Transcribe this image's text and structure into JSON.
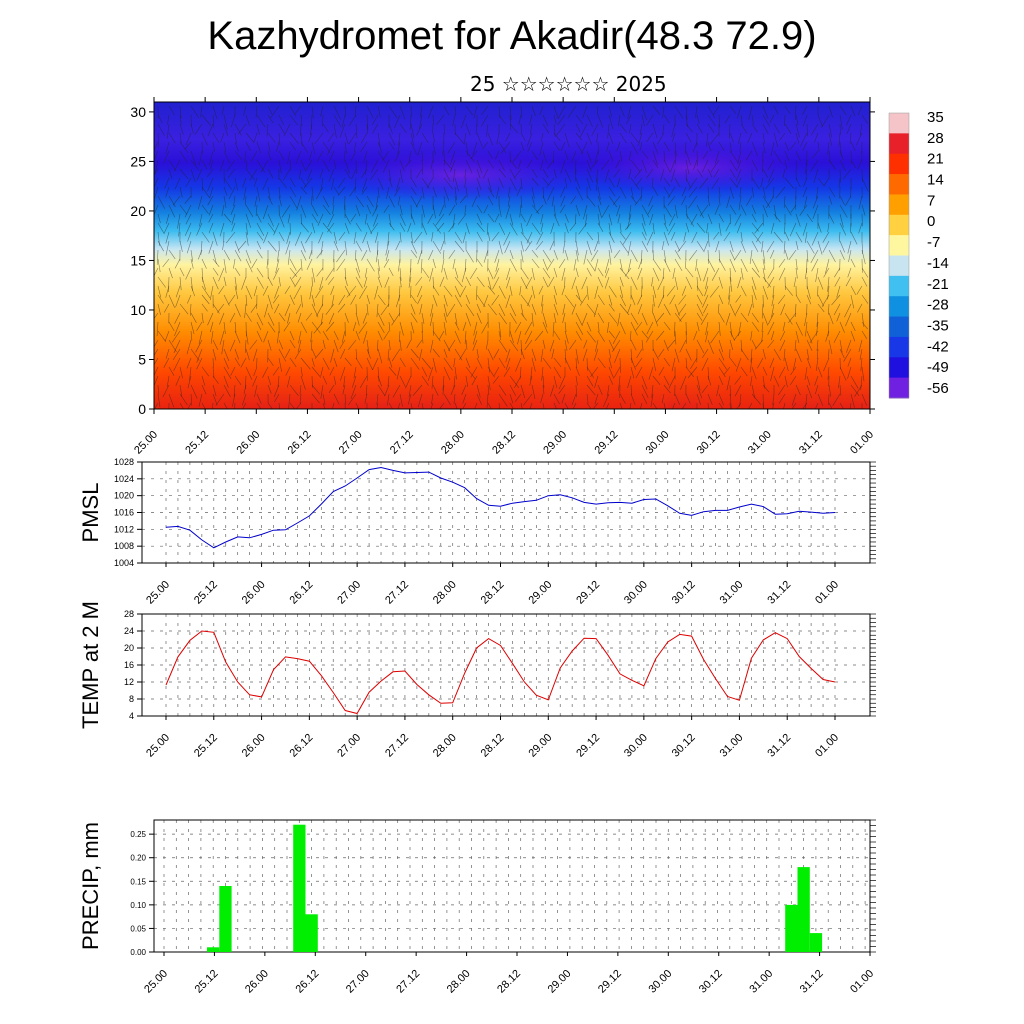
{
  "title": "Kazhydromet for Akadir(48.3 72.9)",
  "subtitle": "25 ☆☆☆☆☆☆ 2025",
  "colors": {
    "pmsl_line": "#0000cc",
    "temp_line": "#dd0000",
    "precip_bar": "#00ee00",
    "frame": "#000000"
  },
  "chart_data": [
    {
      "type": "heatmap",
      "name": "cross-section",
      "y_ticks": [
        0,
        5,
        10,
        15,
        20,
        25,
        30
      ],
      "ylim": [
        0,
        31
      ],
      "x_tick_labels": [
        "25.00",
        "25.12",
        "26.00",
        "26.12",
        "27.00",
        "27.12",
        "28.00",
        "28.12",
        "29.00",
        "29.12",
        "30.00",
        "30.12",
        "31.00",
        "31.12",
        "01.00"
      ],
      "colorbar_labels": [
        "35",
        "28",
        "21",
        "14",
        "7",
        "0",
        "-7",
        "-14",
        "-21",
        "-28",
        "-35",
        "-42",
        "-49",
        "-56"
      ],
      "colorbar_colors": [
        "#f4c4c8",
        "#e8202a",
        "#ff3000",
        "#ff6a00",
        "#ffa000",
        "#ffd040",
        "#fff7a0",
        "#c8e4f0",
        "#40c0f0",
        "#1090e0",
        "#1060d8",
        "#1838e8",
        "#2010e0",
        "#7020e0"
      ],
      "temperature_profile_note": "",
      "grid": true
    },
    {
      "type": "line",
      "name": "pmsl",
      "ylabel": "PMSL",
      "y_ticks": [
        1004,
        1008,
        1012,
        1016,
        1020,
        1024,
        1028
      ],
      "ylim": [
        1004,
        1028
      ],
      "x_tick_labels": [
        "25.00",
        "25.12",
        "26.00",
        "26.12",
        "27.00",
        "27.12",
        "28.00",
        "28.12",
        "29.00",
        "29.12",
        "30.00",
        "30.12",
        "31.00",
        "31.12",
        "01.00"
      ],
      "values": [
        1012.5,
        1012.7,
        1011.8,
        1009.5,
        1007.6,
        1009.0,
        1010.2,
        1010.0,
        1010.8,
        1011.8,
        1011.9,
        1013.5,
        1015.2,
        1018.0,
        1021.0,
        1022.3,
        1024.2,
        1026.2,
        1026.7,
        1026.0,
        1025.4,
        1025.5,
        1025.6,
        1024.2,
        1023.2,
        1021.9,
        1019.3,
        1017.7,
        1017.5,
        1018.2,
        1018.6,
        1018.9,
        1020.0,
        1020.2,
        1019.5,
        1018.4,
        1018.0,
        1018.3,
        1018.4,
        1018.2,
        1019.1,
        1019.2,
        1017.6,
        1015.8,
        1015.3,
        1016.2,
        1016.5,
        1016.5,
        1017.3,
        1018.0,
        1017.4,
        1015.6,
        1015.7,
        1016.3,
        1016.1,
        1015.8,
        1016.0
      ],
      "grid": true
    },
    {
      "type": "line",
      "name": "temp",
      "ylabel": "TEMP at 2 M",
      "y_ticks": [
        4,
        8,
        12,
        16,
        20,
        24,
        28
      ],
      "ylim": [
        4,
        28
      ],
      "x_tick_labels": [
        "25.00",
        "25.12",
        "26.00",
        "26.12",
        "27.00",
        "27.12",
        "28.00",
        "28.12",
        "29.00",
        "29.12",
        "30.00",
        "30.12",
        "31.00",
        "31.12",
        "01.00"
      ],
      "values": [
        11.3,
        17.9,
        21.8,
        24.0,
        23.7,
        16.7,
        12.0,
        9.0,
        8.5,
        14.9,
        17.9,
        17.5,
        16.9,
        13.5,
        9.5,
        5.3,
        4.6,
        9.6,
        12.2,
        14.4,
        14.6,
        11.4,
        9.0,
        7.0,
        7.1,
        14.1,
        20.0,
        22.2,
        20.6,
        16.4,
        12.0,
        8.9,
        7.8,
        15.3,
        19.3,
        22.3,
        22.2,
        18.3,
        13.9,
        12.4,
        11.1,
        17.5,
        21.4,
        23.2,
        22.8,
        17.3,
        12.8,
        8.6,
        7.7,
        17.6,
        21.9,
        23.6,
        22.2,
        18.0,
        15.2,
        12.6,
        12.0
      ],
      "grid": true
    },
    {
      "type": "bar",
      "name": "precip",
      "ylabel": "PRECIP, mm",
      "y_ticks": [
        0.0,
        0.05,
        0.1,
        0.15,
        0.2,
        0.25
      ],
      "y_tick_labels": [
        "0.00",
        "0.05",
        "0.10",
        "0.15",
        "0.20",
        "0.25"
      ],
      "ylim": [
        0,
        0.28
      ],
      "x_tick_labels": [
        "25.00",
        "25.12",
        "26.00",
        "26.12",
        "27.00",
        "27.12",
        "28.00",
        "28.12",
        "29.00",
        "29.12",
        "30.00",
        "30.12",
        "31.00",
        "31.12",
        "01.00"
      ],
      "bars": [
        {
          "x": 4,
          "value": 0.01
        },
        {
          "x": 5,
          "value": 0.14
        },
        {
          "x": 11,
          "value": 0.27
        },
        {
          "x": 12,
          "value": 0.08
        },
        {
          "x": 51,
          "value": 0.1
        },
        {
          "x": 52,
          "value": 0.18
        },
        {
          "x": 53,
          "value": 0.04
        }
      ],
      "grid": true
    }
  ]
}
